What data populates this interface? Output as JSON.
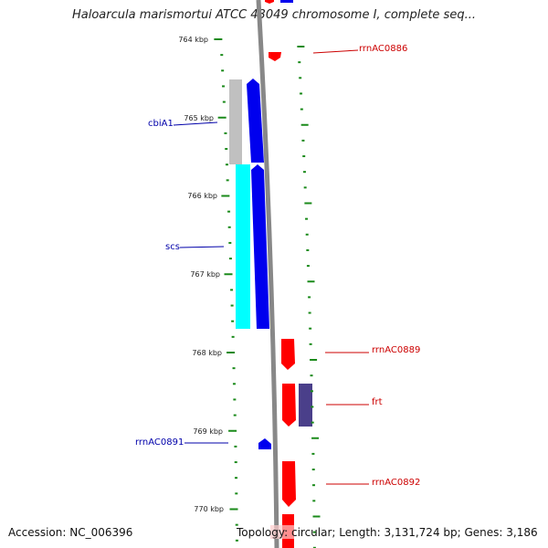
{
  "title": "Haloarcula marismortui ATCC 43049 chromosome I, complete seq...",
  "ticks": [
    {
      "label": "764 kbp"
    },
    {
      "label": "765 kbp"
    },
    {
      "label": "766 kbp"
    },
    {
      "label": "767 kbp"
    },
    {
      "label": "768 kbp"
    },
    {
      "label": "769 kbp"
    },
    {
      "label": "770 kbp"
    }
  ],
  "genes": [
    {
      "name": "rrnAC0886",
      "strand": "reverse"
    },
    {
      "name": "cbiA1",
      "strand": "forward"
    },
    {
      "name": "scs",
      "strand": "forward"
    },
    {
      "name": "rrnAC0889",
      "strand": "reverse"
    },
    {
      "name": "frt",
      "strand": "reverse"
    },
    {
      "name": "rrnAC0891",
      "strand": "forward"
    },
    {
      "name": "rrnAC0892",
      "strand": "reverse"
    }
  ],
  "footer": {
    "accession": "Accession: NC_006396",
    "summary": "Topology: circular; Length: 3,131,724 bp; Genes: 3,186"
  },
  "colors": {
    "reverse_strand": "#ff0000",
    "forward_strand": "#0000ee",
    "tick": "#1a8a1a",
    "backbone": "#888888",
    "gc_high": "#00ffff",
    "gc_low": "#c0c0c0",
    "frt_feature": "#4a3f8a"
  }
}
